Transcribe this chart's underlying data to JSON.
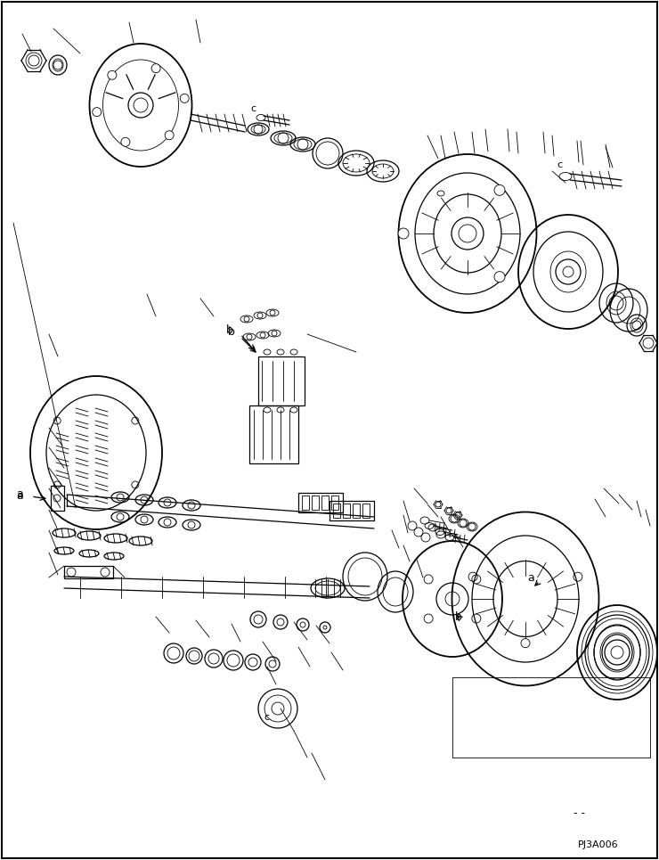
{
  "background_color": "#ffffff",
  "line_color": "#000000",
  "text_color": "#000000",
  "watermark": "PJ3A006",
  "dash_marks": "- -",
  "fig_width": 7.4,
  "fig_height": 9.65,
  "dpi": 100,
  "label_a": "a",
  "label_b": "b",
  "label_c": "c"
}
